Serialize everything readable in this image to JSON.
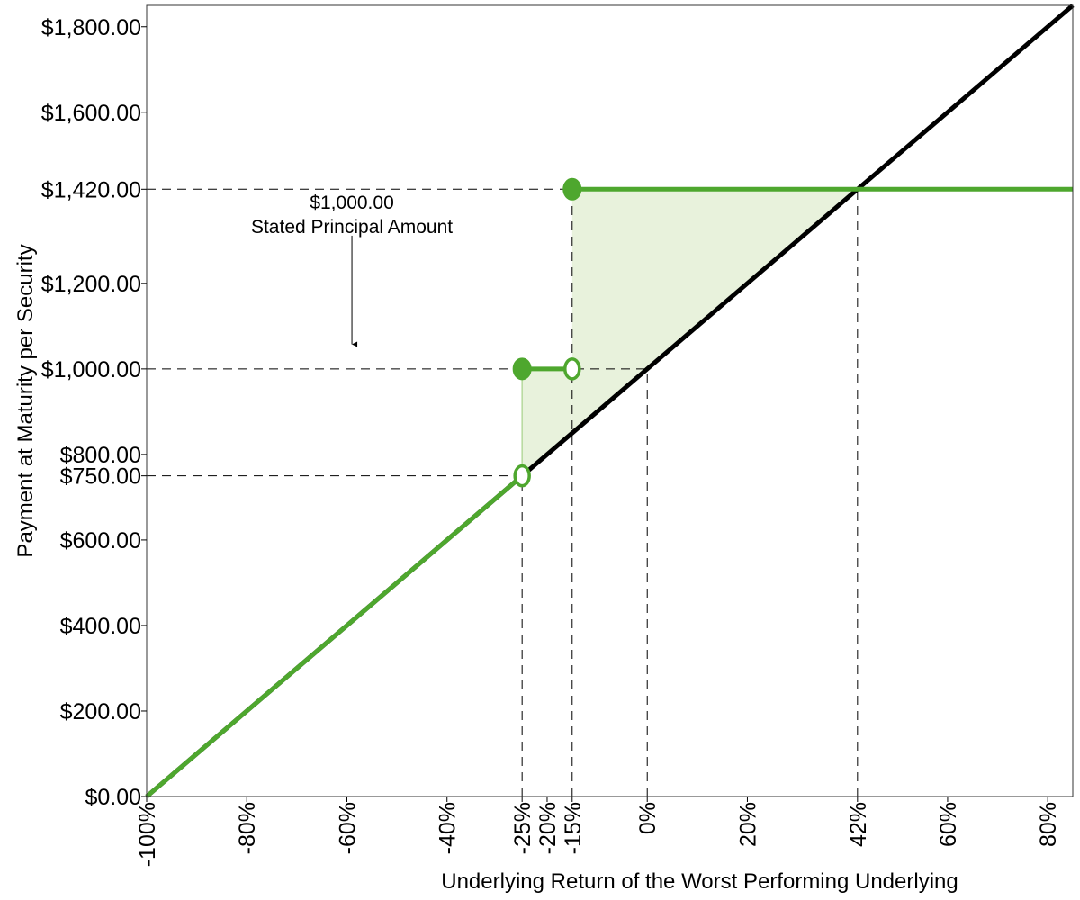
{
  "chart_data": {
    "type": "line",
    "xlabel": "Underlying Return of the Worst Performing Underlying",
    "ylabel": "Payment at Maturity per Security",
    "xlim": [
      -100,
      85
    ],
    "ylim": [
      0,
      1850
    ],
    "x_ticks": [
      -100,
      -80,
      -60,
      -40,
      -25,
      -20,
      -15,
      0,
      20,
      42,
      60,
      80
    ],
    "x_tick_labels": [
      "-100%",
      "-80%",
      "-60%",
      "-40%",
      "-25%",
      "-20%",
      "-15%",
      "0%",
      "20%",
      "42%",
      "60%",
      "80%"
    ],
    "y_ticks": [
      0,
      200,
      400,
      600,
      750,
      800,
      1000,
      1200,
      1420,
      1600,
      1800
    ],
    "y_tick_labels": [
      "$0.00",
      "$200.00",
      "$400.00",
      "$600.00",
      "$750.00",
      "$800.00",
      "$1,000.00",
      "$1,200.00",
      "$1,420.00",
      "$1,600.00",
      "$1,800.00"
    ],
    "grid": false,
    "colors": {
      "security": "#4ea72e",
      "underlying": "#000000",
      "fill": "#e8f2dc"
    },
    "series": [
      {
        "key": "underlying",
        "color": "#000000",
        "x": [
          -100,
          85
        ],
        "y": [
          0,
          1850
        ]
      },
      {
        "key": "security",
        "color": "#4ea72e",
        "segments": [
          {
            "x": [
              -100,
              -25
            ],
            "y": [
              0,
              750
            ]
          },
          {
            "x": [
              -25,
              -15
            ],
            "y": [
              1000,
              1000
            ]
          },
          {
            "x": [
              -15,
              85
            ],
            "y": [
              1420,
              1420
            ]
          }
        ],
        "filled_points": [
          [
            -25,
            1000
          ],
          [
            -15,
            1420
          ]
        ],
        "open_points": [
          [
            -25,
            750
          ],
          [
            -15,
            1000
          ]
        ]
      }
    ],
    "reference_lines": {
      "horizontal": [
        {
          "y": 1420,
          "x_end": -15
        },
        {
          "y": 1000,
          "x_end": 0
        },
        {
          "y": 750,
          "x_end": -25
        }
      ],
      "vertical": [
        {
          "x": -25,
          "y_end": 750
        },
        {
          "x": -15,
          "y_end": 1420
        },
        {
          "x": 0,
          "y_end": 1000
        },
        {
          "x": 42,
          "y_end": 1420
        }
      ]
    },
    "shaded_regions": [
      [
        [
          -25,
          750
        ],
        [
          -25,
          1000
        ],
        [
          -15,
          1000
        ],
        [
          -15,
          850
        ]
      ],
      [
        [
          -15,
          850
        ],
        [
          -15,
          1420
        ],
        [
          42,
          1420
        ]
      ]
    ],
    "annotations": [
      {
        "lines": [
          "$1,000.00",
          "Stated Principal Amount"
        ],
        "x": -59,
        "y": 1305,
        "arrow_to": [
          -59,
          1045
        ]
      }
    ]
  }
}
